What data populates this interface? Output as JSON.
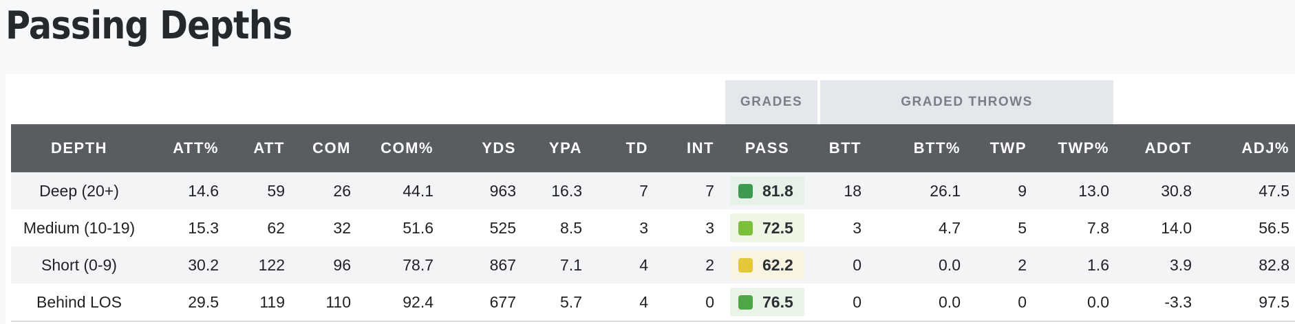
{
  "title": "Passing Depths",
  "groups": {
    "grades": "GRADES",
    "graded_throws": "GRADED THROWS"
  },
  "columns": [
    "DEPTH",
    "ATT%",
    "ATT",
    "COM",
    "COM%",
    "YDS",
    "YPA",
    "TD",
    "INT",
    "PASS",
    "BTT",
    "BTT%",
    "TWP",
    "TWP%",
    "ADOT",
    "ADJ%"
  ],
  "rows": [
    {
      "depth": "Deep (20+)",
      "att_pct": "14.6",
      "att": "59",
      "com": "26",
      "com_pct": "44.1",
      "yds": "963",
      "ypa": "16.3",
      "td": "7",
      "int": "7",
      "pass": "81.8",
      "pass_color": "#3d9a50",
      "pass_bg": "#e6f2e7",
      "btt": "18",
      "btt_pct": "26.1",
      "twp": "9",
      "twp_pct": "13.0",
      "adot": "30.8",
      "adj_pct": "47.5"
    },
    {
      "depth": "Medium (10-19)",
      "att_pct": "15.3",
      "att": "62",
      "com": "32",
      "com_pct": "51.6",
      "yds": "525",
      "ypa": "8.5",
      "td": "3",
      "int": "3",
      "pass": "72.5",
      "pass_color": "#7cbf3a",
      "pass_bg": "#eef6e4",
      "btt": "3",
      "btt_pct": "4.7",
      "twp": "5",
      "twp_pct": "7.8",
      "adot": "14.0",
      "adj_pct": "56.5"
    },
    {
      "depth": "Short (0-9)",
      "att_pct": "30.2",
      "att": "122",
      "com": "96",
      "com_pct": "78.7",
      "yds": "867",
      "ypa": "7.1",
      "td": "4",
      "int": "2",
      "pass": "62.2",
      "pass_color": "#e4c83a",
      "pass_bg": "#f8f4e1",
      "btt": "0",
      "btt_pct": "0.0",
      "twp": "2",
      "twp_pct": "1.6",
      "adot": "3.9",
      "adj_pct": "82.8"
    },
    {
      "depth": "Behind LOS",
      "att_pct": "29.5",
      "att": "119",
      "com": "110",
      "com_pct": "92.4",
      "yds": "677",
      "ypa": "5.7",
      "td": "4",
      "int": "0",
      "pass": "76.5",
      "pass_color": "#4fa646",
      "pass_bg": "#e9f4e7",
      "btt": "0",
      "btt_pct": "0.0",
      "twp": "0",
      "twp_pct": "0.0",
      "adot": "-3.3",
      "adj_pct": "97.5"
    }
  ]
}
